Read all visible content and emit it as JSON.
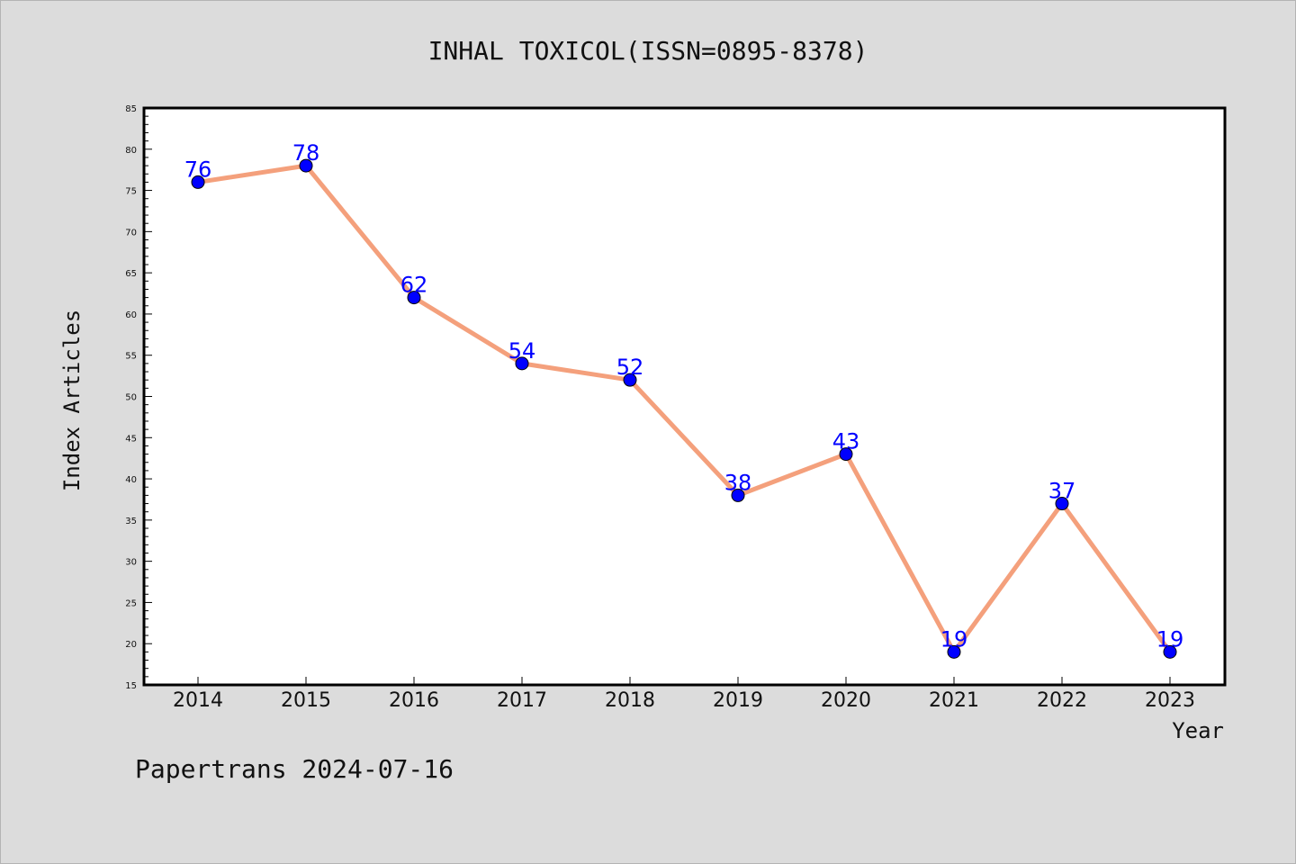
{
  "chart_data": {
    "type": "line",
    "title": "INHAL TOXICOL(ISSN=0895-8378)",
    "xlabel": "Year",
    "ylabel": "Index Articles",
    "categories": [
      "2014",
      "2015",
      "2016",
      "2017",
      "2018",
      "2019",
      "2020",
      "2021",
      "2022",
      "2023"
    ],
    "values": [
      76,
      78,
      62,
      54,
      52,
      38,
      43,
      19,
      37,
      19
    ],
    "ylim": [
      15,
      85
    ],
    "y_ticks": [
      15,
      20,
      25,
      30,
      35,
      40,
      45,
      50,
      55,
      60,
      65,
      70,
      75,
      80,
      85
    ],
    "grid": false,
    "line_color": "#f4a07c",
    "marker_color": "#0000ff",
    "label_color": "#0000ff"
  },
  "footer": {
    "text": "Papertrans 2024-07-16"
  }
}
